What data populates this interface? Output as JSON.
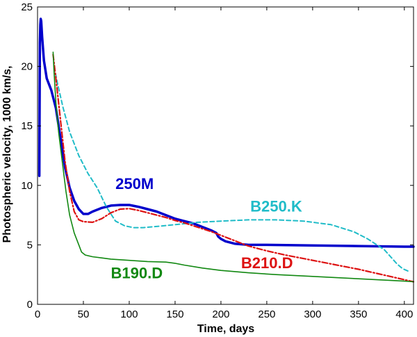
{
  "chart_data": {
    "type": "line",
    "xlabel": "Time, days",
    "ylabel": "Photospheric velocity, 1000 km/s,",
    "xlim": [
      0,
      410
    ],
    "ylim": [
      0,
      25
    ],
    "xticks": [
      0,
      50,
      100,
      150,
      200,
      250,
      300,
      350,
      400
    ],
    "yticks": [
      0,
      5,
      10,
      15,
      20,
      25
    ],
    "grid": false,
    "series": [
      {
        "name": "250M",
        "color": "#0000cc",
        "style": "solid-thick",
        "points": [
          [
            2,
            10.8
          ],
          [
            2.3,
            17
          ],
          [
            2.6,
            22
          ],
          [
            3,
            23.5
          ],
          [
            3.5,
            24
          ],
          [
            4,
            23.8
          ],
          [
            5,
            22.5
          ],
          [
            7,
            20.5
          ],
          [
            10,
            19
          ],
          [
            15,
            18
          ],
          [
            20,
            16.5
          ],
          [
            25,
            14
          ],
          [
            30,
            11.5
          ],
          [
            35,
            9.8
          ],
          [
            40,
            8.7
          ],
          [
            45,
            8
          ],
          [
            50,
            7.6
          ],
          [
            55,
            7.6
          ],
          [
            60,
            7.8
          ],
          [
            70,
            8.1
          ],
          [
            80,
            8.3
          ],
          [
            90,
            8.35
          ],
          [
            100,
            8.35
          ],
          [
            110,
            8.2
          ],
          [
            120,
            8
          ],
          [
            130,
            7.8
          ],
          [
            140,
            7.5
          ],
          [
            150,
            7.2
          ],
          [
            160,
            7
          ],
          [
            170,
            6.8
          ],
          [
            180,
            6.5
          ],
          [
            190,
            6.2
          ],
          [
            195,
            6
          ],
          [
            197,
            5.7
          ],
          [
            200,
            5.5
          ],
          [
            205,
            5.3
          ],
          [
            215,
            5.1
          ],
          [
            230,
            5
          ],
          [
            250,
            5
          ],
          [
            300,
            4.95
          ],
          [
            350,
            4.9
          ],
          [
            400,
            4.85
          ],
          [
            410,
            4.85
          ]
        ]
      },
      {
        "name": "B250.K",
        "color": "#20bcc8",
        "style": "dashed",
        "points": [
          [
            18,
            20
          ],
          [
            22,
            18.5
          ],
          [
            28,
            16.5
          ],
          [
            35,
            14.5
          ],
          [
            45,
            12.5
          ],
          [
            55,
            11
          ],
          [
            65,
            9.8
          ],
          [
            75,
            8.2
          ],
          [
            85,
            7
          ],
          [
            95,
            6.6
          ],
          [
            105,
            6.45
          ],
          [
            115,
            6.45
          ],
          [
            130,
            6.55
          ],
          [
            150,
            6.7
          ],
          [
            175,
            6.9
          ],
          [
            200,
            7
          ],
          [
            230,
            7.1
          ],
          [
            260,
            7.1
          ],
          [
            290,
            7
          ],
          [
            320,
            6.7
          ],
          [
            345,
            6.1
          ],
          [
            360,
            5.5
          ],
          [
            370,
            5
          ],
          [
            378,
            4.6
          ],
          [
            385,
            4
          ],
          [
            392,
            3.4
          ],
          [
            398,
            3
          ],
          [
            404,
            2.8
          ]
        ]
      },
      {
        "name": "B210.D",
        "color": "#dd1111",
        "style": "dashdot",
        "points": [
          [
            17,
            21
          ],
          [
            20,
            19
          ],
          [
            25,
            15.5
          ],
          [
            30,
            12
          ],
          [
            35,
            9.5
          ],
          [
            40,
            7.8
          ],
          [
            45,
            7.1
          ],
          [
            50,
            6.95
          ],
          [
            60,
            6.9
          ],
          [
            70,
            7.2
          ],
          [
            80,
            7.7
          ],
          [
            90,
            8
          ],
          [
            100,
            8.05
          ],
          [
            110,
            7.9
          ],
          [
            120,
            7.7
          ],
          [
            130,
            7.5
          ],
          [
            140,
            7.3
          ],
          [
            150,
            7.05
          ],
          [
            160,
            6.85
          ],
          [
            170,
            6.6
          ],
          [
            180,
            6.35
          ],
          [
            190,
            6.1
          ],
          [
            200,
            5.8
          ],
          [
            210,
            5.5
          ],
          [
            220,
            5.2
          ],
          [
            230,
            4.9
          ],
          [
            250,
            4.5
          ],
          [
            270,
            4.15
          ],
          [
            290,
            3.85
          ],
          [
            310,
            3.55
          ],
          [
            330,
            3.25
          ],
          [
            350,
            2.95
          ],
          [
            370,
            2.6
          ],
          [
            390,
            2.25
          ],
          [
            410,
            1.9
          ]
        ]
      },
      {
        "name": "B190.D",
        "color": "#118811",
        "style": "solid",
        "points": [
          [
            17,
            21.2
          ],
          [
            18,
            19.5
          ],
          [
            20,
            17
          ],
          [
            23,
            14.5
          ],
          [
            27,
            12
          ],
          [
            31,
            9.5
          ],
          [
            35,
            7.5
          ],
          [
            40,
            6
          ],
          [
            45,
            5
          ],
          [
            48,
            4.4
          ],
          [
            52,
            4.15
          ],
          [
            60,
            4
          ],
          [
            70,
            3.9
          ],
          [
            80,
            3.8
          ],
          [
            100,
            3.7
          ],
          [
            120,
            3.6
          ],
          [
            140,
            3.55
          ],
          [
            150,
            3.45
          ],
          [
            160,
            3.3
          ],
          [
            180,
            3.05
          ],
          [
            200,
            2.85
          ],
          [
            230,
            2.65
          ],
          [
            260,
            2.5
          ],
          [
            300,
            2.35
          ],
          [
            350,
            2.15
          ],
          [
            400,
            1.95
          ],
          [
            410,
            1.9
          ]
        ]
      }
    ],
    "annotations": [
      {
        "text": "250M",
        "x": 85,
        "y": 9.7,
        "color": "#0000cc"
      },
      {
        "text": "B250.K",
        "x": 232,
        "y": 7.8,
        "color": "#20bcc8"
      },
      {
        "text": "B210.D",
        "x": 222,
        "y": 3.05,
        "color": "#dd1111"
      },
      {
        "text": "B190.D",
        "x": 80,
        "y": 2.2,
        "color": "#118811"
      }
    ]
  }
}
